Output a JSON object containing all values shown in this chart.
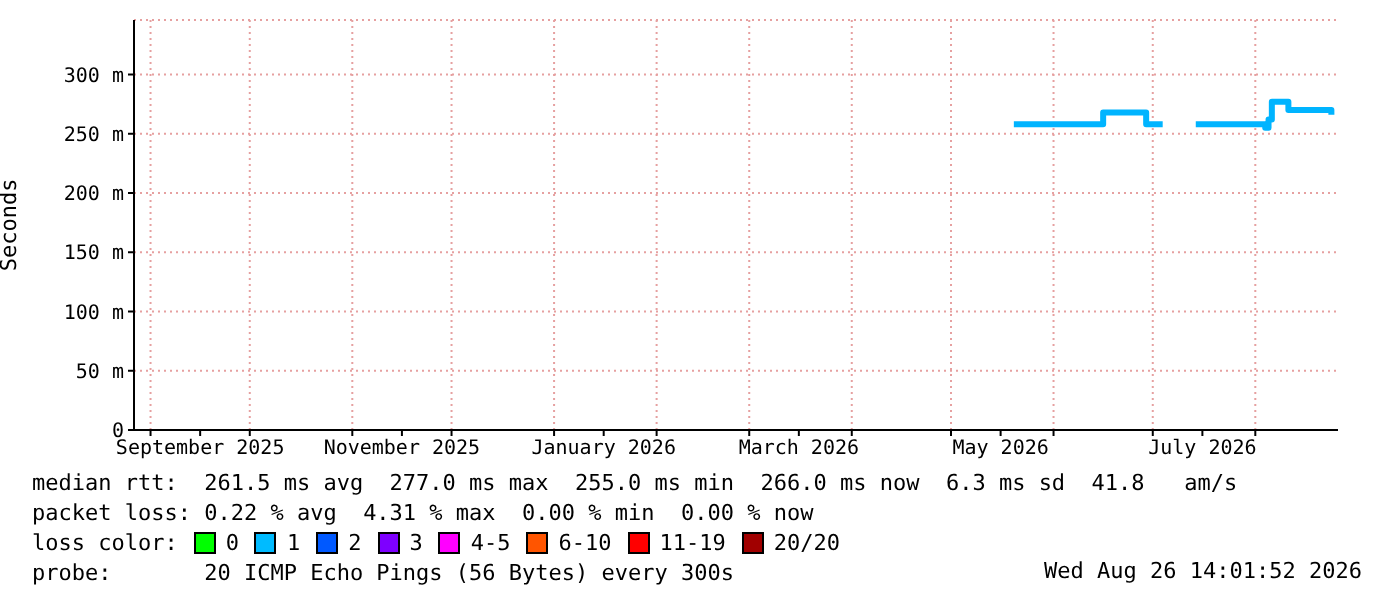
{
  "chart_data": {
    "type": "step",
    "ylabel": "Seconds",
    "x": [
      "2026-05-20",
      "2026-06-15",
      "2026-06-16",
      "2026-06-28",
      "2026-06-29",
      "2026-07-04",
      "2026-07-10",
      "2026-07-14",
      "2026-08-04",
      "2026-08-05",
      "2026-08-06",
      "2026-08-10",
      "2026-08-11",
      "2026-08-24"
    ],
    "series": [
      {
        "color": "#00b4ff",
        "values": [
          258,
          258,
          268,
          268,
          258,
          258,
          null,
          258,
          255,
          262,
          277,
          277,
          270,
          266
        ]
      },
      {
        "name": "0",
        "color": "#00ff00",
        "values": [
          null,
          null,
          null,
          null,
          null,
          null,
          null,
          null,
          null,
          null,
          null,
          null,
          null,
          null
        ]
      },
      {
        "name": "1",
        "color": "#00bbff",
        "values": [
          null,
          null,
          null,
          null,
          null,
          null,
          null,
          null,
          null,
          null,
          null,
          null,
          null,
          null
        ]
      },
      {
        "name": "2",
        "color": "#0059ff",
        "values": [
          null,
          null,
          null,
          null,
          null,
          null,
          null,
          null,
          null,
          null,
          null,
          null,
          null,
          null
        ]
      },
      {
        "name": "3",
        "color": "#7e00ff",
        "values": [
          null,
          null,
          null,
          null,
          null,
          null,
          null,
          null,
          null,
          null,
          null,
          null,
          null,
          null
        ]
      },
      {
        "name": "4-5",
        "color": "#ff00ff",
        "values": [
          null,
          null,
          null,
          null,
          null,
          null,
          null,
          null,
          null,
          null,
          null,
          null,
          null,
          null
        ]
      },
      {
        "name": "6-10",
        "color": "#ff5500",
        "values": [
          null,
          null,
          null,
          null,
          null,
          null,
          null,
          null,
          null,
          null,
          null,
          null,
          null,
          null
        ]
      },
      {
        "name": "11-19",
        "color": "#ff0000",
        "values": [
          null,
          null,
          null,
          null,
          null,
          null,
          null,
          null,
          null,
          null,
          null,
          null,
          null,
          null
        ]
      },
      {
        "name": "20/20",
        "color": "#a10000",
        "values": [
          null,
          null,
          null,
          null,
          null,
          null,
          null,
          null,
          null,
          null,
          null,
          null,
          null,
          null
        ]
      }
    ],
    "legend": "bottom",
    "legend_title": "loss color:",
    "xlim": [
      "2025-08-27",
      "2026-08-26"
    ],
    "xticks": [
      {
        "value": "2025-09-01",
        "label": null
      },
      {
        "value": "2025-09-16",
        "label": "September 2025"
      },
      {
        "value": "2025-10-01",
        "label": null
      },
      {
        "value": "2025-11-01",
        "label": null
      },
      {
        "value": "2025-11-16",
        "label": "November 2025"
      },
      {
        "value": "2025-12-01",
        "label": null
      },
      {
        "value": "2026-01-01",
        "label": null
      },
      {
        "value": "2026-01-16",
        "label": "January 2026"
      },
      {
        "value": "2026-02-01",
        "label": null
      },
      {
        "value": "2026-03-01",
        "label": null
      },
      {
        "value": "2026-03-16",
        "label": "March 2026"
      },
      {
        "value": "2026-04-01",
        "label": null
      },
      {
        "value": "2026-05-01",
        "label": null
      },
      {
        "value": "2026-05-16",
        "label": "May 2026"
      },
      {
        "value": "2026-06-01",
        "label": null
      },
      {
        "value": "2026-07-01",
        "label": null
      },
      {
        "value": "2026-07-16",
        "label": "July 2026"
      },
      {
        "value": "2026-08-01",
        "label": null
      }
    ],
    "ylim": [
      0,
      346
    ],
    "yticks": [
      0,
      {
        "value": 50,
        "label": "50 m"
      },
      {
        "value": 100,
        "label": "100 m"
      },
      {
        "value": 150,
        "label": "150 m"
      },
      {
        "value": 200,
        "label": "200 m"
      },
      {
        "value": 250,
        "label": "250 m"
      },
      {
        "value": 300,
        "label": "300 m"
      }
    ],
    "grid": true,
    "annotations": [
      "median rtt:  261.5 ms avg  277.0 ms max  255.0 ms min  266.0 ms now  6.3 ms sd  41.8   am/s",
      "packet loss: 0.22 % avg  4.31 % max  0.00 % min  0.00 % now",
      "probe:       20 ICMP Echo Pings (56 Bytes) every 300s",
      "Wed Aug 26 14:01:52 2026"
    ]
  }
}
